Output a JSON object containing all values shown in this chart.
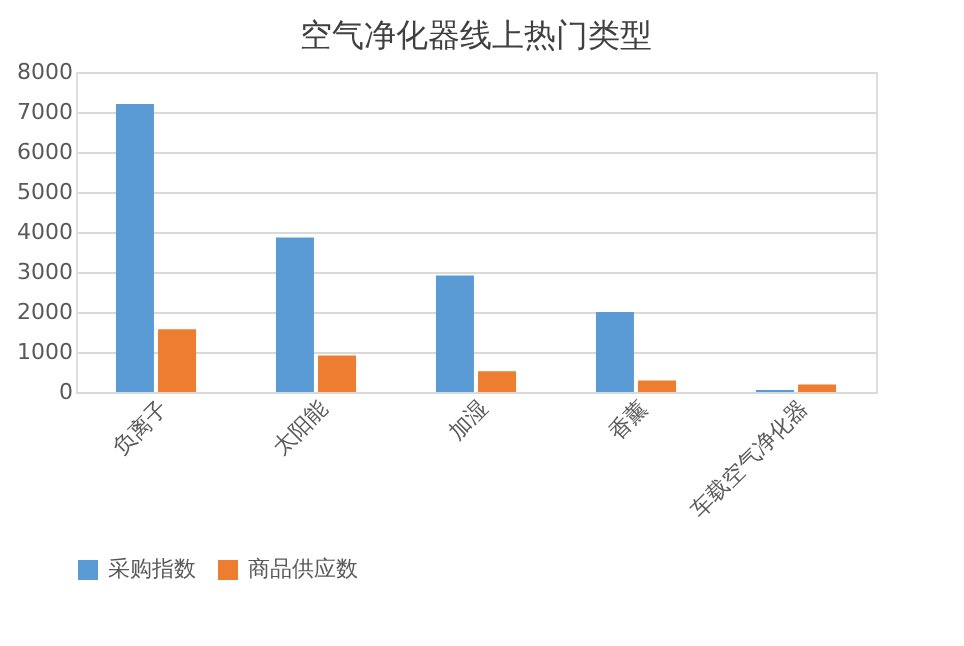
{
  "chart_data": {
    "type": "bar",
    "title": "空气净化器线上热门类型",
    "categories": [
      "负离子",
      "太阳能",
      "加湿",
      "香薰",
      "车载空气净化器"
    ],
    "series": [
      {
        "name": "采购指数",
        "color": "#5b9bd5",
        "values": [
          7200,
          3860,
          2910,
          2000,
          50
        ]
      },
      {
        "name": "商品供应数",
        "color": "#ed7d31",
        "values": [
          1570,
          910,
          520,
          290,
          190
        ]
      }
    ],
    "ylim": [
      0,
      8000
    ],
    "yticks": [
      0,
      1000,
      2000,
      3000,
      4000,
      5000,
      6000,
      7000,
      8000
    ],
    "grid": "y",
    "legend": "bottom"
  }
}
